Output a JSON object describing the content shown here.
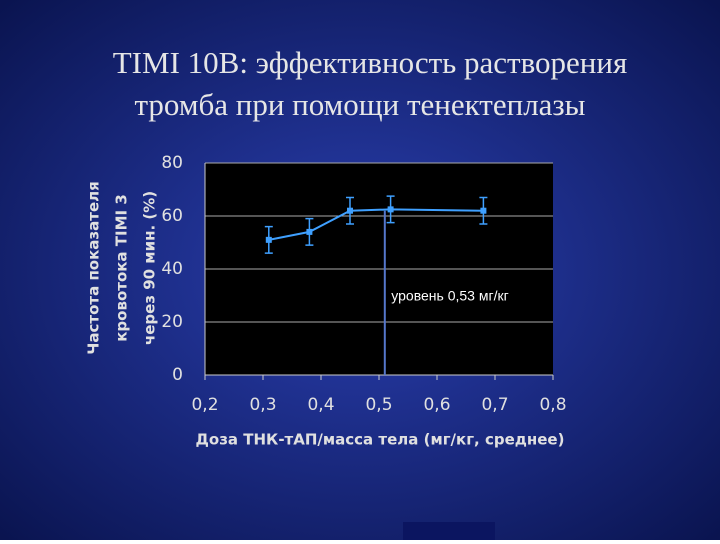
{
  "chart_data": {
    "type": "line",
    "title": [
      "TIMI 10B: эффективность растворения",
      "тромба при помощи тенектеплазы"
    ],
    "y_label": [
      "Частота показателя",
      "кровотока TIMI 3",
      "через 90 мин. (%)"
    ],
    "x_label": "Доза ТНК-тАП/масса тела (мг/кг, среднее)",
    "x": [
      0.31,
      0.38,
      0.45,
      0.52,
      0.68
    ],
    "series": [
      {
        "color": "#3fa0ff",
        "values": [
          51,
          54,
          62,
          62.5,
          62
        ],
        "errors": [
          5,
          5,
          5,
          5,
          5
        ]
      }
    ],
    "xlim": [
      0.2,
      0.8
    ],
    "ylim": [
      0,
      80
    ],
    "xticks": [
      {
        "value": 0.2,
        "label": "0,2"
      },
      {
        "value": 0.3,
        "label": "0,3"
      },
      {
        "value": 0.4,
        "label": "0,4"
      },
      {
        "value": 0.5,
        "label": "0,5"
      },
      {
        "value": 0.6,
        "label": "0,6"
      },
      {
        "value": 0.7,
        "label": "0,7"
      },
      {
        "value": 0.8,
        "label": "0,8"
      }
    ],
    "yticks": [
      0,
      20,
      40,
      60,
      80
    ],
    "grid": true,
    "reference_line": {
      "x": 0.51,
      "top": 62,
      "label": "уровень 0,53 мг/кг"
    }
  }
}
